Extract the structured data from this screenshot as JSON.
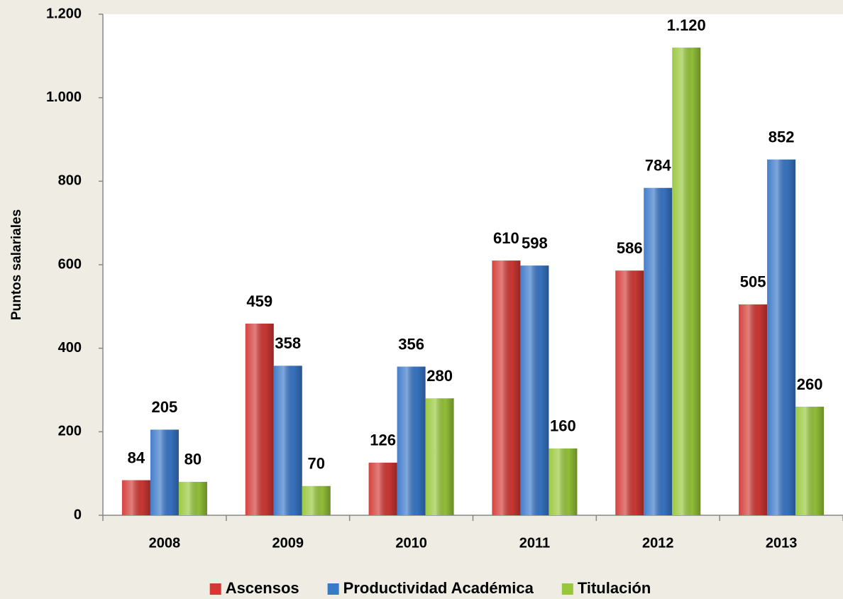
{
  "chart_data": {
    "type": "bar",
    "y_label": "Puntos salariales",
    "categories": [
      "2008",
      "2009",
      "2010",
      "2011",
      "2012",
      "2013"
    ],
    "series": [
      {
        "name": "Ascensos",
        "color": "#d23a36",
        "values": [
          84,
          459,
          126,
          610,
          586,
          505
        ]
      },
      {
        "name": "Productividad Académica",
        "color": "#3a78c8",
        "values": [
          205,
          358,
          356,
          598,
          784,
          852
        ]
      },
      {
        "name": "Titulación",
        "color": "#98c73b",
        "values": [
          80,
          70,
          280,
          160,
          1120,
          260
        ],
        "value_labels": [
          "80",
          "70",
          "280",
          "160",
          "1.120",
          "260"
        ]
      }
    ],
    "ylim": [
      0,
      1200
    ],
    "yticks": [
      0,
      200,
      400,
      600,
      800,
      {
        "value": 1000,
        "label": "1.000"
      },
      {
        "value": 1200,
        "label": "1.200"
      }
    ],
    "legend": "bottom"
  }
}
